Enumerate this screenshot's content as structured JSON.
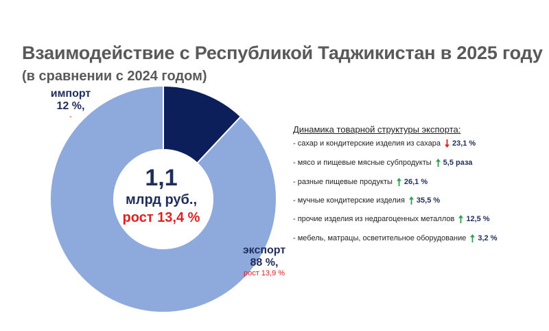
{
  "title": "Взаимодействие с Республикой Таджикистан в 2025 году",
  "subtitle": "(в сравнении с 2024 годом)",
  "colors": {
    "export": "#8ea9db",
    "import": "#0c1f5a",
    "up": "#2e9e4a",
    "down": "#e02020"
  },
  "center": {
    "value": "1,1",
    "unit": "млрд руб.,",
    "growth": "рост 13,4 %"
  },
  "chart_data": {
    "type": "pie",
    "categories": [
      "импорт",
      "экспорт"
    ],
    "values": [
      12,
      88
    ],
    "share_labels": [
      "12 %,",
      "88 %,"
    ],
    "change_labels": [
      "-",
      "рост 13,9 %"
    ]
  },
  "dynamics": {
    "title": "Динамика товарной структуры экспорта:",
    "items": [
      {
        "label": "- сахар и кондитерские изделия из сахара",
        "direction": "down",
        "value": "23,1 %"
      },
      {
        "label": "- мясо и пищевые мясные субпродукты",
        "direction": "up",
        "value": "5,5 раза"
      },
      {
        "label": "- разные пищевые продукты",
        "direction": "up",
        "value": "26,1 %"
      },
      {
        "label": "- мучные кондитерские изделия",
        "direction": "up",
        "value": "35,5 %"
      },
      {
        "label": "- прочие изделия из недрагоценных металлов",
        "direction": "up",
        "value": "12,5 %"
      },
      {
        "label": "- мебель, матрацы, осветительное оборудование",
        "direction": "up",
        "value": "3,2 %"
      }
    ]
  }
}
